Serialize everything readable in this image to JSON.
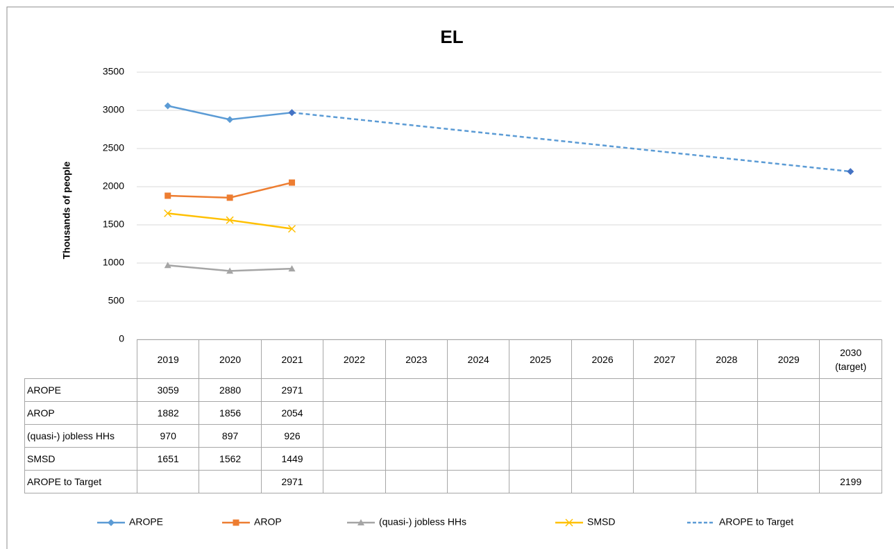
{
  "chart_data": {
    "type": "line",
    "title": "EL",
    "y_label": "Thousands  of people",
    "categories": [
      "2019",
      "2020",
      "2021",
      "2022",
      "2023",
      "2024",
      "2025",
      "2026",
      "2027",
      "2028",
      "2029",
      "2030 (target)"
    ],
    "ylim": [
      0,
      3500
    ],
    "yticks": [
      0,
      500,
      1000,
      1500,
      2000,
      2500,
      3000,
      3500
    ],
    "grid": true,
    "series": [
      {
        "name": "AROPE",
        "color": "#5b9bd5",
        "marker": "diamond",
        "values": [
          3059,
          2880,
          2971,
          null,
          null,
          null,
          null,
          null,
          null,
          null,
          null,
          null
        ]
      },
      {
        "name": "AROP",
        "color": "#ed7d31",
        "marker": "square",
        "values": [
          1882,
          1856,
          2054,
          null,
          null,
          null,
          null,
          null,
          null,
          null,
          null,
          null
        ]
      },
      {
        "name": "(quasi-) jobless HHs",
        "color": "#a5a5a5",
        "marker": "triangle",
        "values": [
          970,
          897,
          926,
          null,
          null,
          null,
          null,
          null,
          null,
          null,
          null,
          null
        ]
      },
      {
        "name": "SMSD",
        "color": "#ffc000",
        "marker": "x",
        "values": [
          1651,
          1562,
          1449,
          null,
          null,
          null,
          null,
          null,
          null,
          null,
          null,
          null
        ]
      },
      {
        "name": "AROPE to Target",
        "color": "#5b9bd5",
        "marker_color": "#4472c4",
        "marker": "diamond",
        "dashed": true,
        "connect_gaps": true,
        "values": [
          null,
          null,
          2971,
          null,
          null,
          null,
          null,
          null,
          null,
          null,
          null,
          2199
        ]
      }
    ]
  }
}
